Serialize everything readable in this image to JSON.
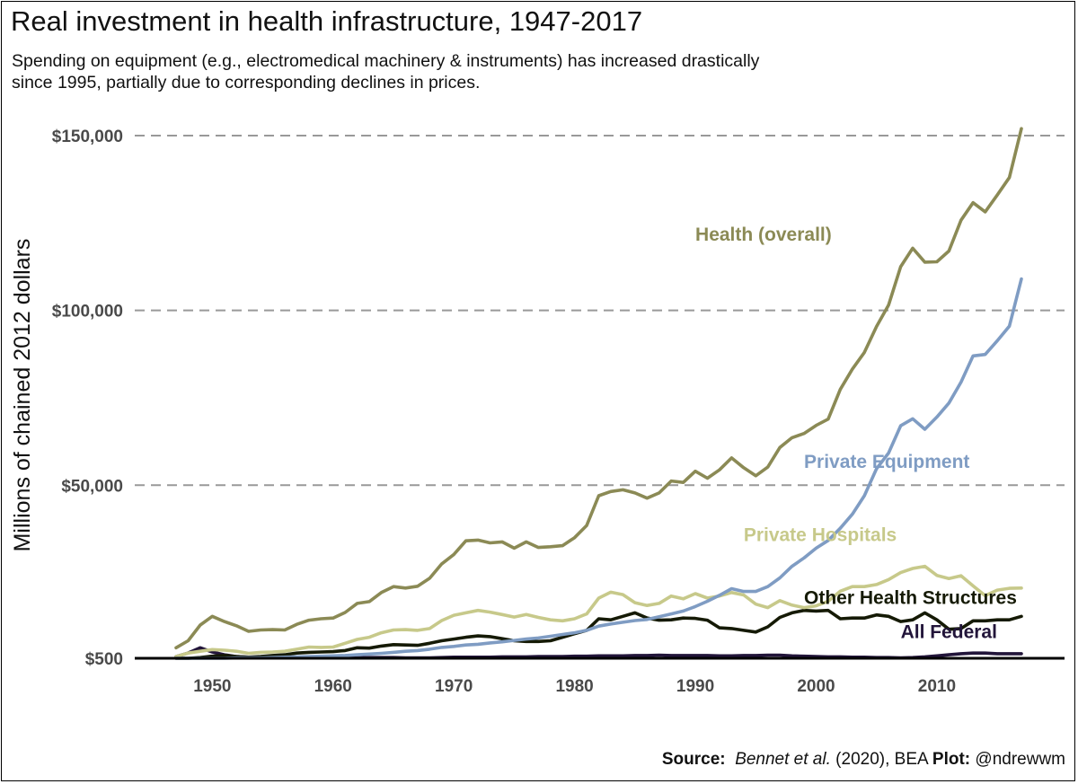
{
  "title": "Real investment in health infrastructure, 1947-2017",
  "subtitle_lines": [
    "Spending on equipment (e.g., electromedical machinery & instruments) has increased drastically",
    "since 1995, partially due to corresponding declines in prices."
  ],
  "caption": {
    "source_label": "Source:",
    "source_author": "Bennet et al.",
    "source_rest": "(2020), BEA",
    "plot_label": "Plot:",
    "plot_handle": "@ndrewwm"
  },
  "chart_data": {
    "type": "line",
    "ylabel": "Millions of chained 2012 dollars",
    "xlabel": "",
    "xlim": [
      1944,
      2020
    ],
    "ylim": [
      500,
      160000
    ],
    "x_ticks": [
      1950,
      1960,
      1970,
      1980,
      1990,
      2000,
      2010
    ],
    "x_tick_labels": [
      "1950",
      "1960",
      "1970",
      "1980",
      "1990",
      "2000",
      "2010"
    ],
    "y_ticks": [
      500,
      50000,
      100000,
      150000
    ],
    "y_tick_labels": [
      "$500",
      "$50,000",
      "$100,000",
      "$150,000"
    ],
    "grid": "dashed horizontal",
    "colors": {
      "Health (overall)": "#8b8a55",
      "Private Equipment": "#7f9cc3",
      "Private Hospitals": "#c7c98a",
      "Other Health Structures": "#151a05",
      "All Federal": "#22153a",
      "grid": "#999999",
      "axis": "#000000"
    },
    "x": [
      1947,
      1948,
      1949,
      1950,
      1951,
      1952,
      1953,
      1954,
      1955,
      1956,
      1957,
      1958,
      1959,
      1960,
      1961,
      1962,
      1963,
      1964,
      1965,
      1966,
      1967,
      1968,
      1969,
      1970,
      1971,
      1972,
      1973,
      1974,
      1975,
      1976,
      1977,
      1978,
      1979,
      1980,
      1981,
      1982,
      1983,
      1984,
      1985,
      1986,
      1987,
      1988,
      1989,
      1990,
      1991,
      1992,
      1993,
      1994,
      1995,
      1996,
      1997,
      1998,
      1999,
      2000,
      2001,
      2002,
      2003,
      2004,
      2005,
      2006,
      2007,
      2008,
      2009,
      2010,
      2011,
      2012,
      2013,
      2014,
      2015,
      2016,
      2017
    ],
    "series": [
      {
        "name": "Health (overall)",
        "label_anchor": [
          1990,
          120000
        ],
        "values": [
          3500,
          5500,
          10000,
          12500,
          11000,
          9800,
          8200,
          8600,
          8700,
          8600,
          10200,
          11400,
          11800,
          12000,
          13600,
          16200,
          16700,
          19300,
          21000,
          20600,
          21100,
          23400,
          27500,
          30200,
          34100,
          34300,
          33500,
          33800,
          32000,
          33800,
          32200,
          32400,
          32700,
          35000,
          38500,
          47000,
          48200,
          48700,
          47800,
          46300,
          47800,
          51200,
          50800,
          54000,
          52000,
          54400,
          57800,
          55000,
          52700,
          55200,
          60800,
          63600,
          64800,
          67100,
          68900,
          77400,
          83200,
          88000,
          95400,
          101500,
          112500,
          117800,
          113800,
          113900,
          117000,
          125800,
          130800,
          128200,
          133000,
          138000,
          152000
        ]
      },
      {
        "name": "Private Equipment",
        "label_anchor": [
          1999,
          55000
        ],
        "values": [
          500,
          500,
          500,
          500,
          500,
          600,
          600,
          600,
          700,
          800,
          900,
          1000,
          1100,
          1200,
          1300,
          1500,
          1700,
          1900,
          2200,
          2500,
          2700,
          3100,
          3600,
          3900,
          4300,
          4500,
          4900,
          5200,
          5600,
          6000,
          6300,
          6800,
          7300,
          7800,
          8500,
          9700,
          10300,
          10800,
          11300,
          11600,
          12400,
          13200,
          14000,
          15300,
          16800,
          18500,
          20400,
          19600,
          19600,
          21000,
          23500,
          26800,
          29200,
          32000,
          34200,
          37700,
          41700,
          47000,
          54700,
          59200,
          67000,
          69000,
          66000,
          69500,
          73500,
          79500,
          87000,
          87400,
          91300,
          95500,
          109000
        ]
      },
      {
        "name": "Private Hospitals",
        "label_anchor": [
          1994,
          34000
        ],
        "values": [
          1000,
          2000,
          2500,
          3000,
          2800,
          2500,
          1900,
          2200,
          2300,
          2500,
          3100,
          3700,
          3600,
          3700,
          4800,
          5900,
          6500,
          7800,
          8600,
          8700,
          8500,
          9000,
          11300,
          12800,
          13500,
          14200,
          13700,
          13000,
          12300,
          13000,
          12200,
          11500,
          11200,
          11800,
          13200,
          17700,
          19400,
          18700,
          16400,
          15600,
          16200,
          18300,
          17500,
          19000,
          17700,
          18300,
          19300,
          18600,
          16000,
          15000,
          17000,
          15700,
          15000,
          15500,
          16800,
          19700,
          21000,
          21000,
          21600,
          23000,
          25000,
          26200,
          26800,
          24200,
          23300,
          24100,
          21200,
          18400,
          20000,
          20500,
          20600
        ]
      },
      {
        "name": "Other Health Structures",
        "label_anchor": [
          1999,
          16000
        ],
        "values": [
          500,
          500,
          700,
          1100,
          1300,
          1000,
          800,
          1000,
          1300,
          1500,
          2000,
          2200,
          2300,
          2400,
          2700,
          3500,
          3400,
          4000,
          4400,
          4300,
          4200,
          4800,
          5500,
          6000,
          6500,
          6900,
          6700,
          6100,
          5500,
          5300,
          5300,
          5500,
          6500,
          7500,
          8500,
          11800,
          11500,
          12500,
          13500,
          12000,
          11400,
          11500,
          12000,
          11900,
          11400,
          9200,
          9000,
          8500,
          8000,
          9500,
          12200,
          13500,
          14200,
          14000,
          14200,
          11800,
          12000,
          12000,
          12900,
          12500,
          11000,
          11500,
          13500,
          11500,
          8800,
          9000,
          11200,
          11200,
          11500,
          11500,
          12500
        ]
      },
      {
        "name": "All Federal",
        "label_anchor": [
          2007,
          6300
        ],
        "values": [
          1000,
          2000,
          3500,
          2300,
          1500,
          1000,
          800,
          800,
          800,
          800,
          700,
          600,
          600,
          600,
          600,
          600,
          700,
          700,
          700,
          600,
          600,
          600,
          700,
          800,
          800,
          800,
          800,
          900,
          900,
          900,
          1000,
          1000,
          1000,
          1100,
          1100,
          1200,
          1200,
          1200,
          1300,
          1300,
          1400,
          1300,
          1300,
          1300,
          1300,
          1200,
          1200,
          1300,
          1300,
          1400,
          1400,
          1200,
          1100,
          1000,
          900,
          900,
          800,
          800,
          700,
          700,
          600,
          700,
          900,
          1200,
          1500,
          1800,
          2000,
          2000,
          1800,
          1800,
          1800
        ]
      }
    ]
  }
}
